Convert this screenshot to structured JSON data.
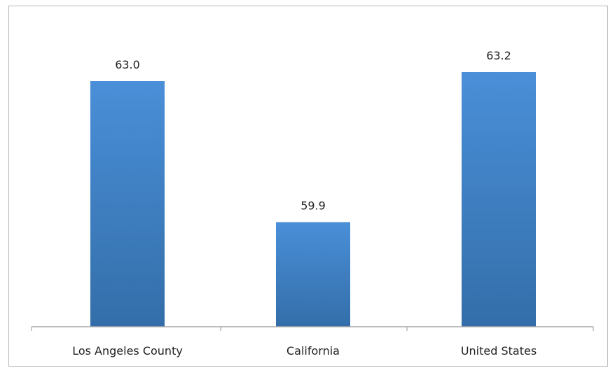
{
  "figure": {
    "top_fragment_text": ""
  },
  "chart_data": {
    "type": "bar",
    "categories": [
      "Los Angeles County",
      "California",
      "United States"
    ],
    "values": [
      63.0,
      59.9,
      63.2
    ],
    "value_labels": [
      "63.0",
      "59.9",
      "63.2"
    ],
    "title": "",
    "xlabel": "",
    "ylabel": "",
    "ylim": [
      57.6,
      64.2
    ],
    "grid": false,
    "legend": "none",
    "colors": {
      "bar_top": "#4a8fd8",
      "bar_bottom": "#336ea9",
      "axis": "#a6a6a6",
      "text": "#222222",
      "border": "#b7b7b7"
    }
  }
}
